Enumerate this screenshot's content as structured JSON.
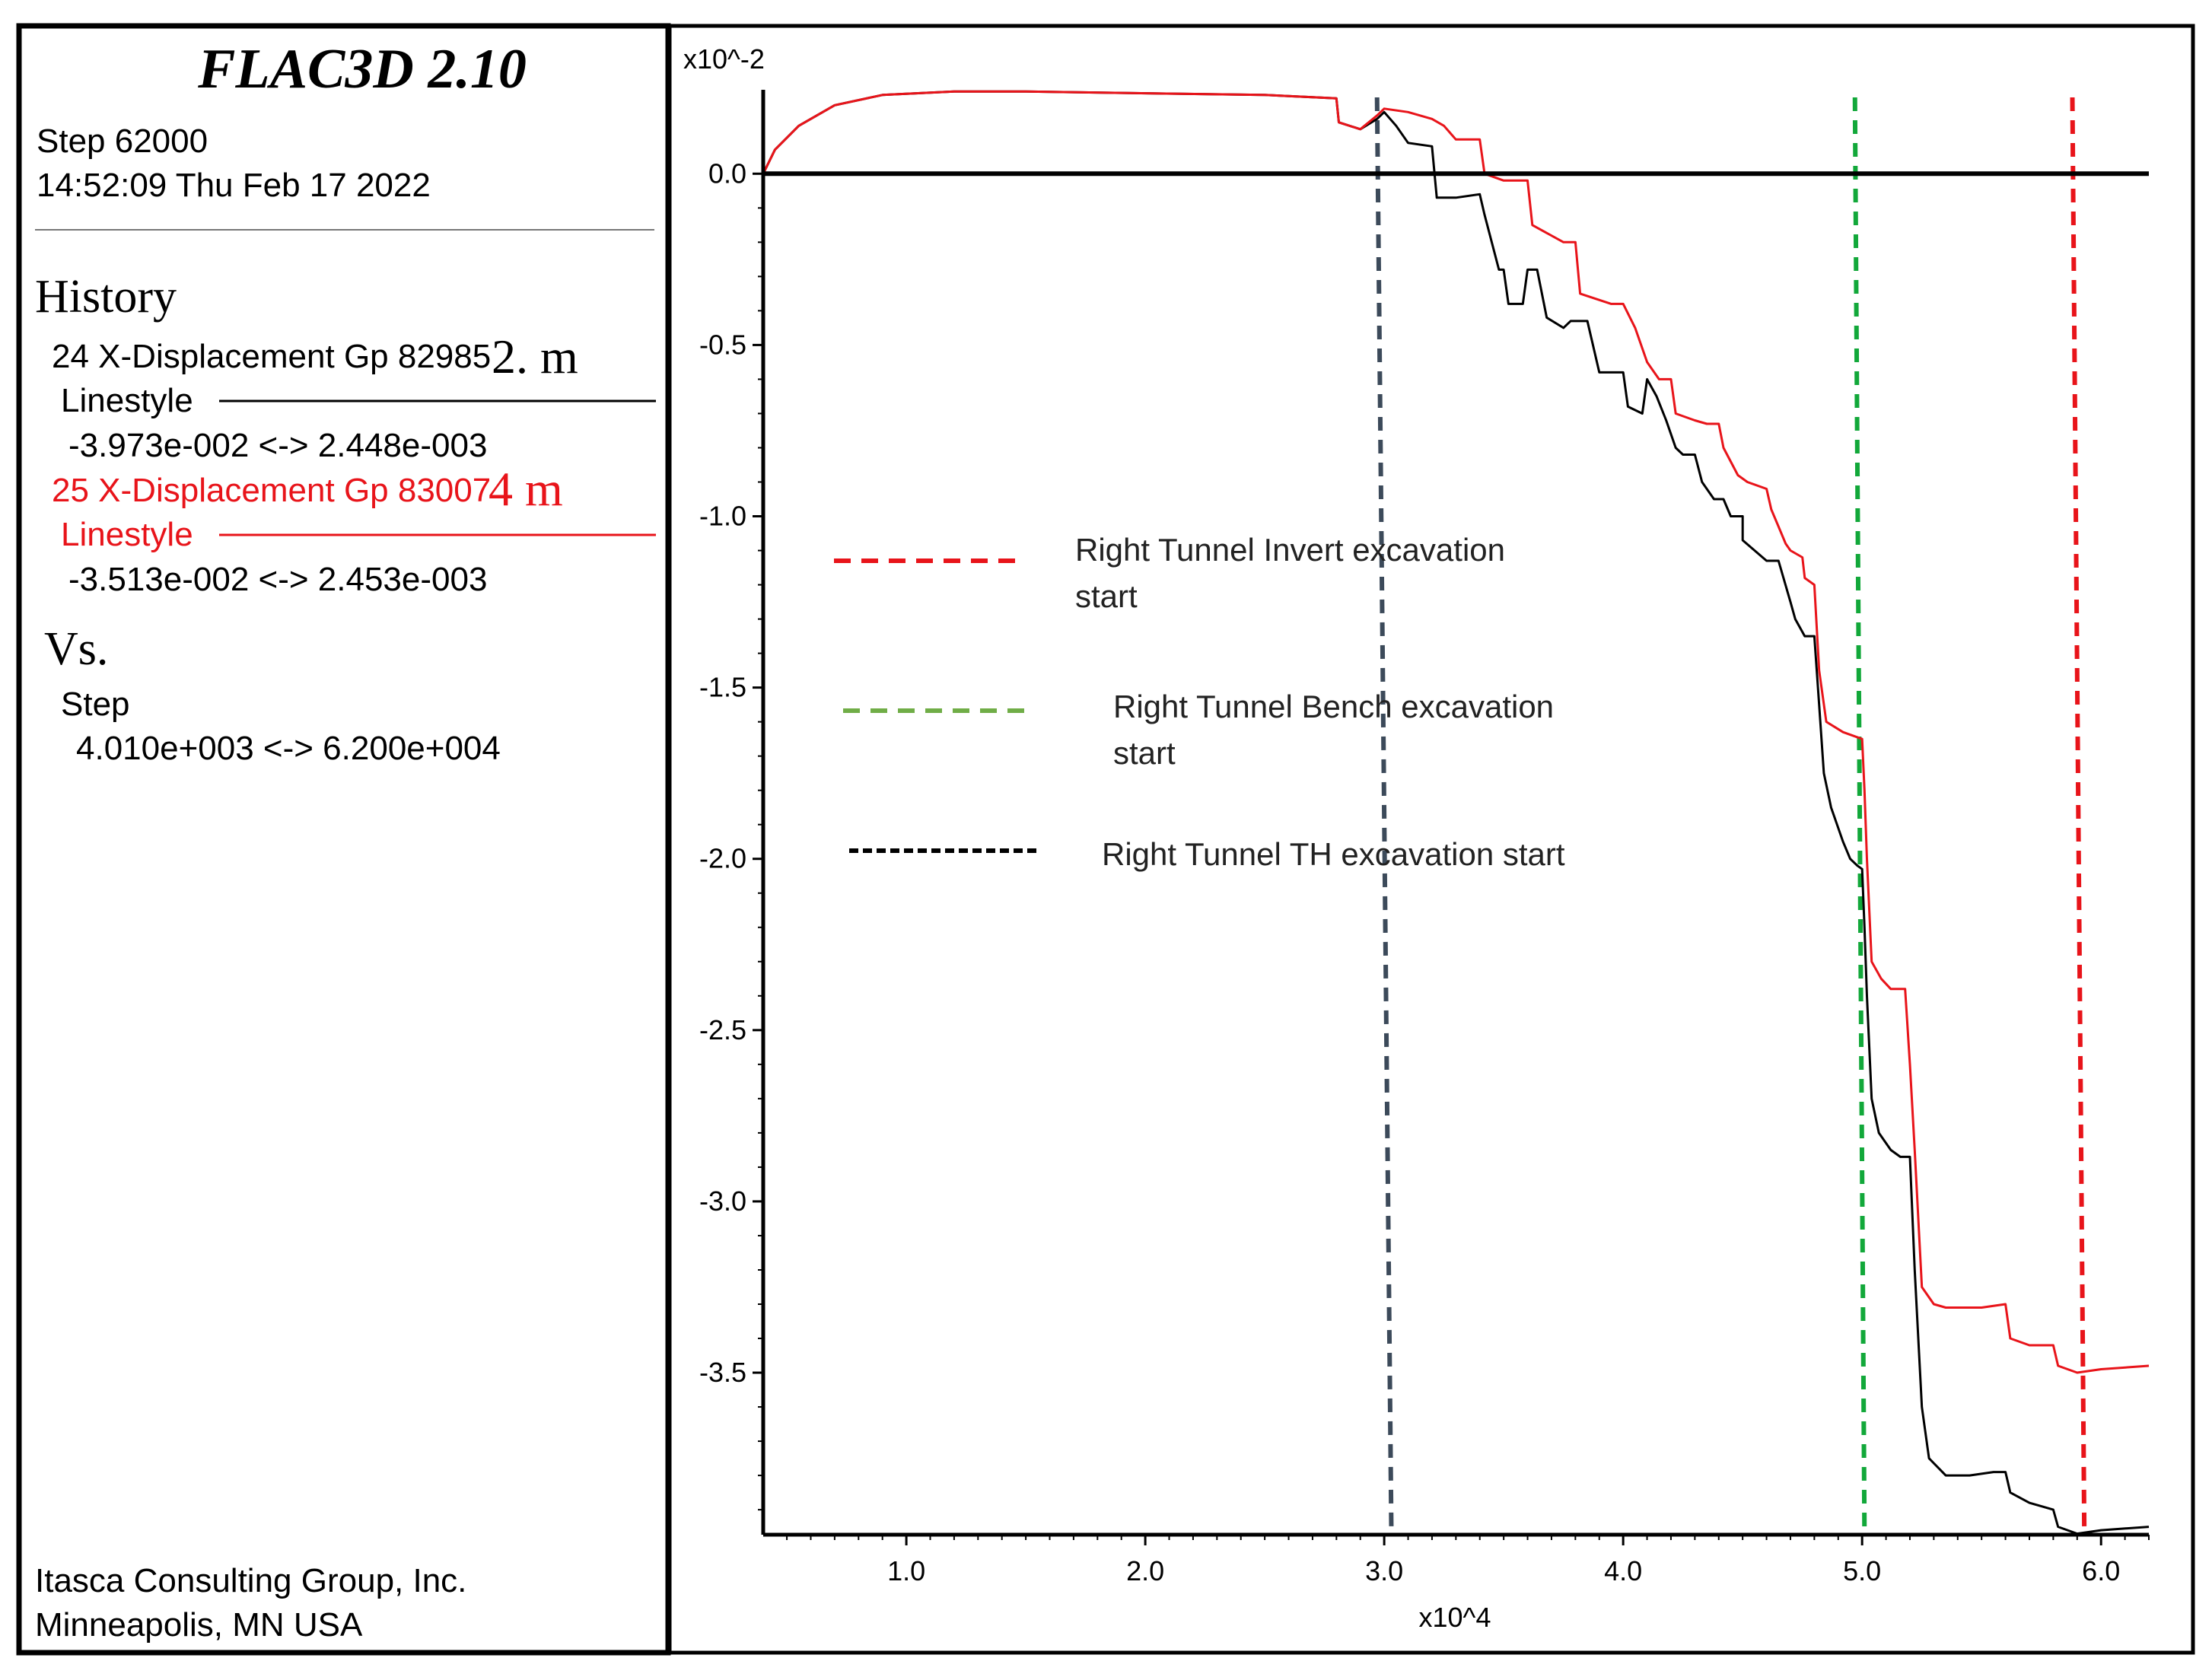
{
  "header": {
    "title": "FLAC3D 2.10",
    "step_line": "Step 62000",
    "datetime": "14:52:09 Thu Feb 17 2022"
  },
  "history": {
    "heading": "History",
    "items": [
      {
        "label": "24 X-Displacement Gp 82985",
        "annotation": "2. m",
        "linestyle_label": "Linestyle",
        "range": "-3.973e-002 <->  2.448e-003",
        "color": "#000000"
      },
      {
        "label": "25 X-Displacement Gp 83007",
        "annotation": "4 m",
        "linestyle_label": "Linestyle",
        "range": "-3.513e-002 <->  2.453e-003",
        "color": "#e8141a"
      }
    ],
    "vs_label": "Vs.",
    "vs_variable": "Step",
    "vs_range": "4.010e+003 <->  6.200e+004"
  },
  "footer": {
    "company": "Itasca Consulting Group, Inc.",
    "location": "Minneapolis, MN  USA"
  },
  "chart_data": {
    "type": "line",
    "title": "",
    "xlabel": "x10^4",
    "ylabel": "x10^-2",
    "xlim": [
      0.401,
      6.2
    ],
    "ylim": [
      -3.973,
      0.245
    ],
    "x_ticks": [
      1.0,
      2.0,
      3.0,
      4.0,
      5.0,
      6.0
    ],
    "x_tick_labels": [
      "1.0",
      "2.0",
      "3.0",
      "4.0",
      "5.0",
      "6.0"
    ],
    "y_ticks": [
      0.0,
      -0.5,
      -1.0,
      -1.5,
      -2.0,
      -2.5,
      -3.0,
      -3.5
    ],
    "y_tick_labels": [
      "0.0",
      "-0.5",
      "-1.0",
      "-1.5",
      "-2.0",
      "-2.5",
      "-3.0",
      "-3.5"
    ],
    "zero_line": true,
    "series": [
      {
        "name": "24 X-Displacement Gp 82985 (2. m)",
        "color": "#000000",
        "points": [
          [
            0.401,
            0.0
          ],
          [
            0.45,
            0.07
          ],
          [
            0.55,
            0.14
          ],
          [
            0.7,
            0.2
          ],
          [
            0.9,
            0.23
          ],
          [
            1.2,
            0.24
          ],
          [
            1.5,
            0.24
          ],
          [
            2.5,
            0.23
          ],
          [
            2.8,
            0.22
          ],
          [
            2.81,
            0.15
          ],
          [
            2.9,
            0.13
          ],
          [
            2.97,
            0.16
          ],
          [
            3.0,
            0.18
          ],
          [
            3.05,
            0.14
          ],
          [
            3.1,
            0.09
          ],
          [
            3.2,
            0.08
          ],
          [
            3.22,
            -0.07
          ],
          [
            3.3,
            -0.07
          ],
          [
            3.4,
            -0.06
          ],
          [
            3.42,
            -0.12
          ],
          [
            3.48,
            -0.28
          ],
          [
            3.5,
            -0.28
          ],
          [
            3.52,
            -0.38
          ],
          [
            3.58,
            -0.38
          ],
          [
            3.6,
            -0.28
          ],
          [
            3.64,
            -0.28
          ],
          [
            3.68,
            -0.42
          ],
          [
            3.75,
            -0.45
          ],
          [
            3.78,
            -0.43
          ],
          [
            3.85,
            -0.43
          ],
          [
            3.9,
            -0.58
          ],
          [
            4.0,
            -0.58
          ],
          [
            4.02,
            -0.68
          ],
          [
            4.08,
            -0.7
          ],
          [
            4.1,
            -0.6
          ],
          [
            4.14,
            -0.65
          ],
          [
            4.18,
            -0.72
          ],
          [
            4.22,
            -0.8
          ],
          [
            4.25,
            -0.82
          ],
          [
            4.3,
            -0.82
          ],
          [
            4.33,
            -0.9
          ],
          [
            4.38,
            -0.95
          ],
          [
            4.42,
            -0.95
          ],
          [
            4.45,
            -1.0
          ],
          [
            4.5,
            -1.0
          ],
          [
            4.5,
            -1.07
          ],
          [
            4.55,
            -1.1
          ],
          [
            4.6,
            -1.13
          ],
          [
            4.65,
            -1.13
          ],
          [
            4.7,
            -1.25
          ],
          [
            4.72,
            -1.3
          ],
          [
            4.76,
            -1.35
          ],
          [
            4.8,
            -1.35
          ],
          [
            4.82,
            -1.55
          ],
          [
            4.84,
            -1.75
          ],
          [
            4.87,
            -1.85
          ],
          [
            4.92,
            -1.95
          ],
          [
            4.95,
            -2.0
          ],
          [
            4.98,
            -2.02
          ],
          [
            5.0,
            -2.03
          ],
          [
            5.01,
            -2.2
          ],
          [
            5.02,
            -2.4
          ],
          [
            5.04,
            -2.7
          ],
          [
            5.07,
            -2.8
          ],
          [
            5.12,
            -2.85
          ],
          [
            5.16,
            -2.87
          ],
          [
            5.2,
            -2.87
          ],
          [
            5.22,
            -3.2
          ],
          [
            5.25,
            -3.6
          ],
          [
            5.28,
            -3.75
          ],
          [
            5.35,
            -3.8
          ],
          [
            5.45,
            -3.8
          ],
          [
            5.55,
            -3.79
          ],
          [
            5.6,
            -3.79
          ],
          [
            5.62,
            -3.85
          ],
          [
            5.7,
            -3.88
          ],
          [
            5.8,
            -3.9
          ],
          [
            5.82,
            -3.95
          ],
          [
            5.9,
            -3.97
          ],
          [
            6.0,
            -3.96
          ],
          [
            6.2,
            -3.95
          ]
        ]
      },
      {
        "name": "25 X-Displacement Gp 83007 (4 m)",
        "color": "#e8141a",
        "points": [
          [
            0.401,
            0.0
          ],
          [
            0.45,
            0.07
          ],
          [
            0.55,
            0.14
          ],
          [
            0.7,
            0.2
          ],
          [
            0.9,
            0.23
          ],
          [
            1.2,
            0.24
          ],
          [
            1.5,
            0.24
          ],
          [
            2.5,
            0.23
          ],
          [
            2.8,
            0.22
          ],
          [
            2.81,
            0.15
          ],
          [
            2.9,
            0.13
          ],
          [
            2.97,
            0.17
          ],
          [
            3.0,
            0.19
          ],
          [
            3.1,
            0.18
          ],
          [
            3.2,
            0.16
          ],
          [
            3.25,
            0.14
          ],
          [
            3.3,
            0.1
          ],
          [
            3.4,
            0.1
          ],
          [
            3.42,
            0.0
          ],
          [
            3.5,
            -0.02
          ],
          [
            3.6,
            -0.02
          ],
          [
            3.62,
            -0.15
          ],
          [
            3.75,
            -0.2
          ],
          [
            3.8,
            -0.2
          ],
          [
            3.82,
            -0.35
          ],
          [
            3.95,
            -0.38
          ],
          [
            4.0,
            -0.38
          ],
          [
            4.05,
            -0.45
          ],
          [
            4.1,
            -0.55
          ],
          [
            4.15,
            -0.6
          ],
          [
            4.2,
            -0.6
          ],
          [
            4.22,
            -0.7
          ],
          [
            4.3,
            -0.72
          ],
          [
            4.35,
            -0.73
          ],
          [
            4.4,
            -0.73
          ],
          [
            4.42,
            -0.8
          ],
          [
            4.48,
            -0.88
          ],
          [
            4.52,
            -0.9
          ],
          [
            4.6,
            -0.92
          ],
          [
            4.62,
            -0.98
          ],
          [
            4.65,
            -1.03
          ],
          [
            4.68,
            -1.08
          ],
          [
            4.7,
            -1.1
          ],
          [
            4.75,
            -1.12
          ],
          [
            4.76,
            -1.18
          ],
          [
            4.8,
            -1.2
          ],
          [
            4.82,
            -1.45
          ],
          [
            4.85,
            -1.6
          ],
          [
            4.92,
            -1.63
          ],
          [
            5.0,
            -1.65
          ],
          [
            5.01,
            -1.8
          ],
          [
            5.02,
            -2.0
          ],
          [
            5.04,
            -2.3
          ],
          [
            5.08,
            -2.35
          ],
          [
            5.12,
            -2.38
          ],
          [
            5.18,
            -2.38
          ],
          [
            5.2,
            -2.6
          ],
          [
            5.22,
            -2.85
          ],
          [
            5.25,
            -3.25
          ],
          [
            5.3,
            -3.3
          ],
          [
            5.35,
            -3.31
          ],
          [
            5.5,
            -3.31
          ],
          [
            5.6,
            -3.3
          ],
          [
            5.62,
            -3.4
          ],
          [
            5.7,
            -3.42
          ],
          [
            5.8,
            -3.42
          ],
          [
            5.82,
            -3.48
          ],
          [
            5.9,
            -3.5
          ],
          [
            6.0,
            -3.49
          ],
          [
            6.2,
            -3.48
          ]
        ]
      }
    ],
    "markers": [
      {
        "name": "Right Tunnel TH excavation start",
        "x_top": 2.97,
        "x_bottom": 3.03,
        "color": "#3c4a5a"
      },
      {
        "name": "Right Tunnel Bench excavation start",
        "x_top": 4.97,
        "x_bottom": 5.01,
        "color": "#12a83a"
      },
      {
        "name": "Right Tunnel Invert excavation start",
        "x_top": 5.88,
        "x_bottom": 5.93,
        "color": "#e8141a"
      }
    ],
    "legend": {
      "position": "center-left",
      "entries": [
        {
          "lines": [
            "Right Tunnel Invert excavation",
            "start"
          ],
          "color": "#e8141a"
        },
        {
          "lines": [
            "Right Tunnel Bench excavation",
            "start"
          ],
          "color": "#70ad47"
        },
        {
          "lines": [
            "Right Tunnel TH excavation start"
          ],
          "color": "#000000"
        }
      ]
    }
  }
}
